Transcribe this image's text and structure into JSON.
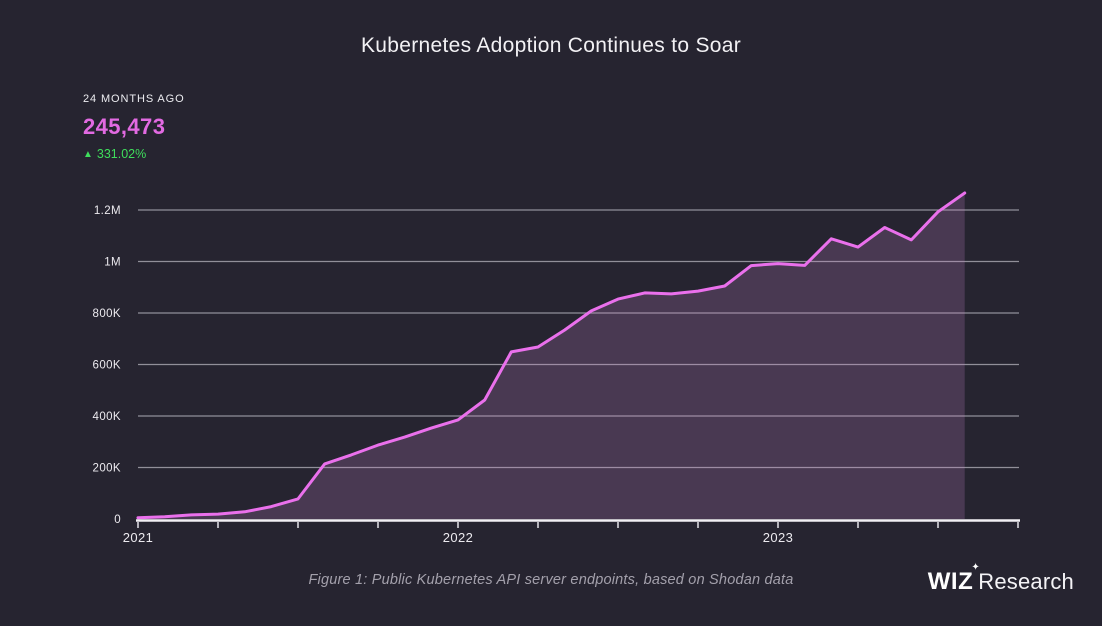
{
  "title": "Kubernetes Adoption Continues to Soar",
  "stats": {
    "label": "24 MONTHS AGO",
    "value": "245,473",
    "change_arrow": "▲",
    "change": "331.02%"
  },
  "caption": "Figure 1: Public Kubernetes API server endpoints, based on Shodan data",
  "logo": {
    "brand": "WIZ",
    "sparkle": "✦",
    "suffix": "Research"
  },
  "colors": {
    "background": "#262430",
    "line": "#ea70ec",
    "area_fill": "rgba(199,132,205,0.22)",
    "value_text": "#e26ae2",
    "change_text": "#3fdd5c",
    "gridline": "rgba(234,232,240,0.55)",
    "axis": "#f2f0f4",
    "tick": "#d8d6de",
    "label_text": "#eceaef",
    "muted_text": "#a3a0ab"
  },
  "chart_data": {
    "type": "area",
    "title": "Kubernetes Adoption Continues to Soar",
    "xlabel": "",
    "ylabel": "",
    "grid": true,
    "legend": false,
    "ylim": [
      0,
      1300000
    ],
    "x_unit": "month",
    "months": [
      "2021-01",
      "2021-02",
      "2021-03",
      "2021-04",
      "2021-05",
      "2021-06",
      "2021-07",
      "2021-08",
      "2021-09",
      "2021-10",
      "2021-11",
      "2021-12",
      "2022-01",
      "2022-02",
      "2022-03",
      "2022-04",
      "2022-05",
      "2022-06",
      "2022-07",
      "2022-08",
      "2022-09",
      "2022-10",
      "2022-11",
      "2022-12",
      "2023-01",
      "2023-02",
      "2023-03",
      "2023-04",
      "2023-05",
      "2023-06",
      "2023-07",
      "2023-08"
    ],
    "values": [
      5000,
      9000,
      16000,
      19000,
      28000,
      48000,
      78000,
      214000,
      249000,
      287000,
      318000,
      353000,
      385000,
      462000,
      649000,
      668000,
      734000,
      808000,
      854000,
      878000,
      874000,
      885000,
      905000,
      984000,
      992000,
      985000,
      1088000,
      1056000,
      1132000,
      1084000,
      1193000,
      1266000
    ],
    "y_ticks": [
      {
        "label": "0",
        "value": 0
      },
      {
        "label": "200K",
        "value": 200000
      },
      {
        "label": "400K",
        "value": 400000
      },
      {
        "label": "600K",
        "value": 600000
      },
      {
        "label": "800K",
        "value": 800000
      },
      {
        "label": "1M",
        "value": 1000000
      },
      {
        "label": "1.2M",
        "value": 1200000
      }
    ],
    "x_year_labels": [
      {
        "label": "2021",
        "month_index": 0
      },
      {
        "label": "2022",
        "month_index": 12
      },
      {
        "label": "2023",
        "month_index": 24
      }
    ],
    "quarter_tick_every": 3,
    "tick_month_max": 33
  }
}
